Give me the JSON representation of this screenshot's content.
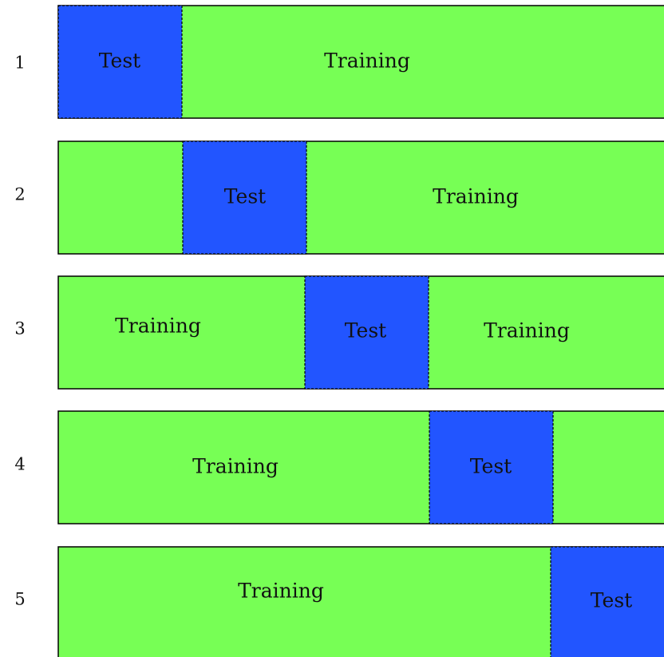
{
  "rows": [
    {
      "number": "1",
      "segments": [
        "Test",
        "Training"
      ]
    },
    {
      "number": "2",
      "segments": [
        "Test",
        "Training"
      ]
    },
    {
      "number": "3",
      "segments": [
        "Training",
        "Test",
        "Training"
      ]
    },
    {
      "number": "4",
      "segments": [
        "Training",
        "Test"
      ]
    },
    {
      "number": "5",
      "segments": [
        "Training",
        "Test"
      ]
    }
  ]
}
